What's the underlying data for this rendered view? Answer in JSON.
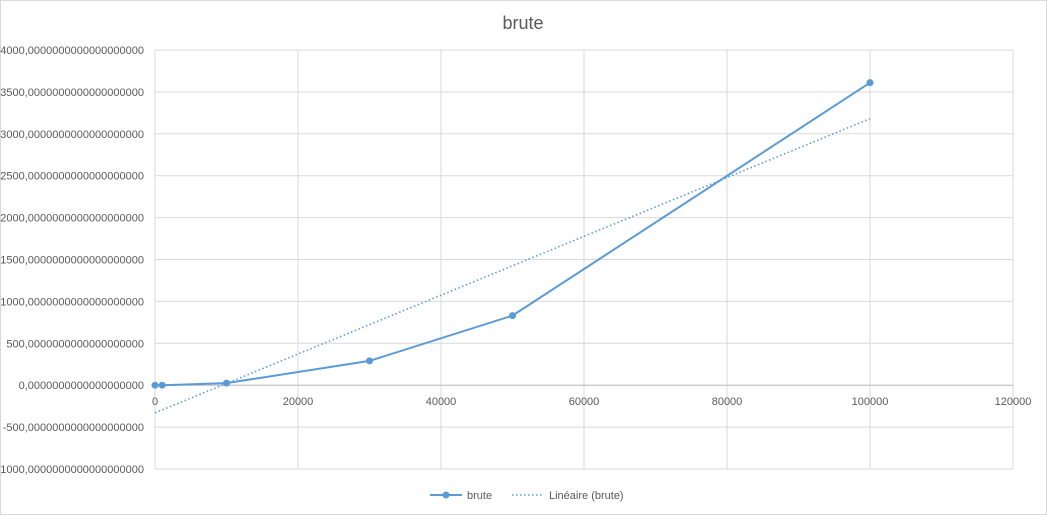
{
  "chart_data": {
    "type": "scatter",
    "title": "brute",
    "xlabel": "",
    "ylabel": "",
    "xlim": [
      0,
      120000
    ],
    "ylim": [
      -1000,
      4000
    ],
    "x_ticks": [
      0,
      20000,
      40000,
      60000,
      80000,
      100000,
      120000
    ],
    "x_tick_labels": [
      "0",
      "20000",
      "40000",
      "60000",
      "80000",
      "100000",
      "120000"
    ],
    "y_ticks": [
      -1000,
      -500,
      0,
      500,
      1000,
      1500,
      2000,
      2500,
      3000,
      3500,
      4000
    ],
    "y_tick_labels": [
      "-1000,0000000000000000000",
      "-500,0000000000000000000",
      "0,0000000000000000000",
      "500,0000000000000000000",
      "1000,0000000000000000000",
      "1500,0000000000000000000",
      "2000,0000000000000000000",
      "2500,0000000000000000000",
      "3000,0000000000000000000",
      "3500,0000000000000000000",
      "4000,0000000000000000000"
    ],
    "grid": true,
    "legend_position": "bottom",
    "series": [
      {
        "name": "brute",
        "style": "line-markers",
        "color": "#5b9bd5",
        "x": [
          0,
          1000,
          10000,
          30000,
          50000,
          100000
        ],
        "y": [
          0,
          0,
          25,
          290,
          830,
          3610
        ]
      },
      {
        "name": "Linéaire (brute)",
        "style": "dotted",
        "color": "#5b9bd5",
        "x": [
          0,
          100000
        ],
        "y": [
          -330,
          3180
        ]
      }
    ]
  }
}
